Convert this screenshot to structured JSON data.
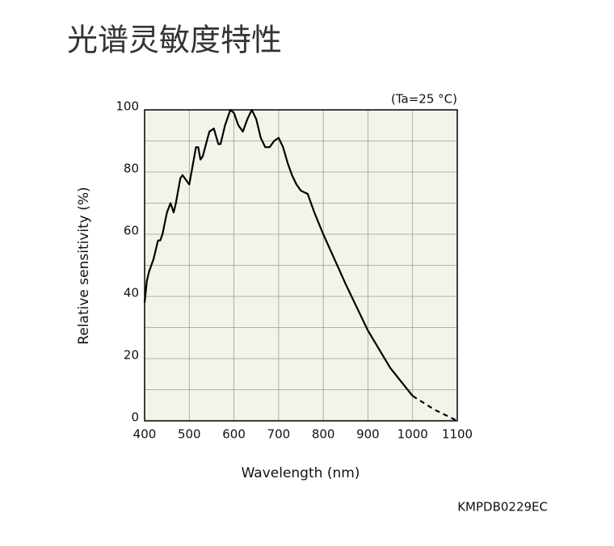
{
  "chart_data": {
    "type": "line",
    "title": "光谱灵敏度特性",
    "annotation": "(Ta=25 °C)",
    "code": "KMPDB0229EC",
    "x_label": "Wavelength (nm)",
    "y_label": "Relative sensitivity (%)",
    "xlim": [
      400,
      1100
    ],
    "ylim": [
      0,
      100
    ],
    "xticks": [
      400,
      500,
      600,
      700,
      800,
      900,
      1000,
      1100
    ],
    "yticks": [
      0,
      20,
      40,
      60,
      80,
      100
    ],
    "y_minor_ticks": [
      10,
      30,
      50,
      70,
      90
    ],
    "grid": true,
    "series": [
      {
        "color": "#000000",
        "dashed": false,
        "x": [
          400,
          405,
          410,
          420,
          430,
          435,
          440,
          450,
          458,
          465,
          470,
          480,
          485,
          500,
          505,
          515,
          520,
          525,
          530,
          545,
          555,
          565,
          570,
          580,
          592,
          600,
          610,
          620,
          630,
          640,
          650,
          660,
          670,
          680,
          690,
          700,
          710,
          720,
          730,
          740,
          750,
          765,
          780,
          800,
          850,
          900,
          950,
          1000
        ],
        "values": [
          38,
          45,
          48,
          52,
          58,
          58,
          60,
          67,
          70,
          67,
          70,
          78,
          79,
          76,
          80,
          88,
          88,
          84,
          85,
          93,
          94,
          89,
          89,
          95,
          100,
          99,
          95,
          93,
          97,
          100,
          97,
          91,
          88,
          88,
          90,
          91,
          88,
          83,
          79,
          76,
          74,
          73,
          67,
          60,
          44,
          29,
          17,
          8
        ]
      },
      {
        "color": "#000000",
        "dashed": true,
        "x": [
          1000,
          1050,
          1100
        ],
        "values": [
          8,
          3.5,
          0
        ]
      }
    ]
  }
}
